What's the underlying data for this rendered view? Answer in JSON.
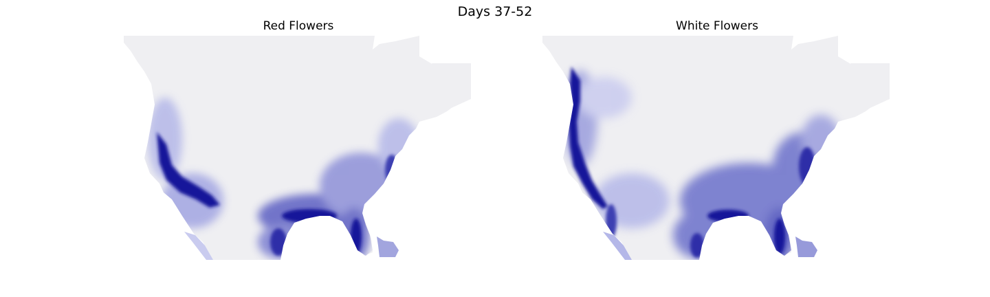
{
  "figure": {
    "title": "Days 37-52"
  },
  "panels": [
    {
      "title": "Red Flowers"
    },
    {
      "title": "White Flowers"
    }
  ],
  "colors": {
    "land": "#efeff2",
    "high_density": "#14149a",
    "mid_density": "#6b6fca",
    "low_density": "#c9cbef",
    "ocean": "#ffffff"
  }
}
